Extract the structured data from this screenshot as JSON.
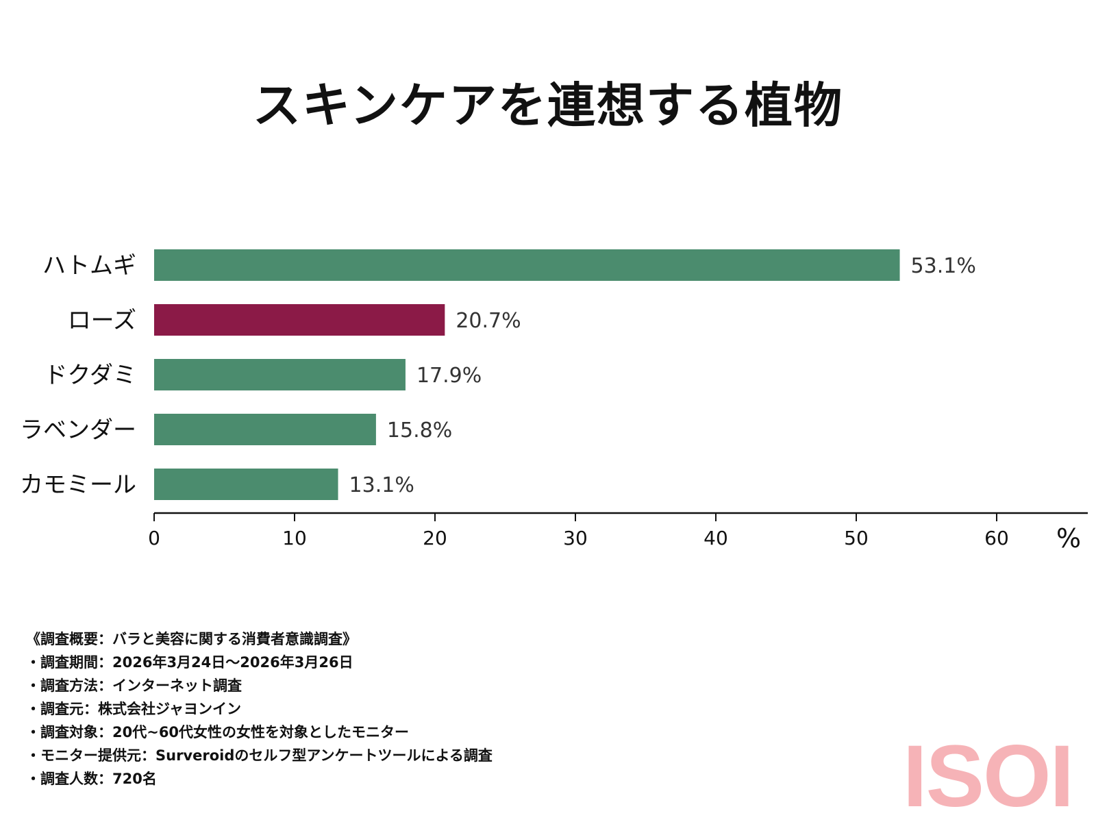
{
  "chart_data": {
    "type": "bar",
    "orientation": "horizontal",
    "title": "スキンケアを連想する植物",
    "categories": [
      "ハトムギ",
      "ローズ",
      "ドクダミ",
      "ラベンダー",
      "カモミール"
    ],
    "values": [
      53.1,
      20.7,
      17.9,
      15.8,
      13.1
    ],
    "value_labels": [
      "53.1%",
      "20.7%",
      "17.9%",
      "15.8%",
      "13.1%"
    ],
    "colors": [
      "#4b8c6e",
      "#8b1a47",
      "#4b8c6e",
      "#4b8c6e",
      "#4b8c6e"
    ],
    "xlim": [
      0,
      66
    ],
    "xticks": [
      0,
      10,
      20,
      30,
      40,
      50,
      60
    ],
    "xlabel": "%",
    "ylabel": "",
    "grid": false
  },
  "notes": [
    "《調査概要：バラと美容に関する消費者意識調査》",
    "・調査期間：2026年3月24日～2026年3月26日",
    "・調査方法：インターネット調査",
    "・調査元：株式会社ジャヨンイン",
    "・調査対象：20代~60代女性の女性を対象としたモニター",
    "・モニター提供元：Surveroidのセルフ型アンケートツールによる調査",
    "・調査人数：720名"
  ],
  "logo": "ISOI"
}
